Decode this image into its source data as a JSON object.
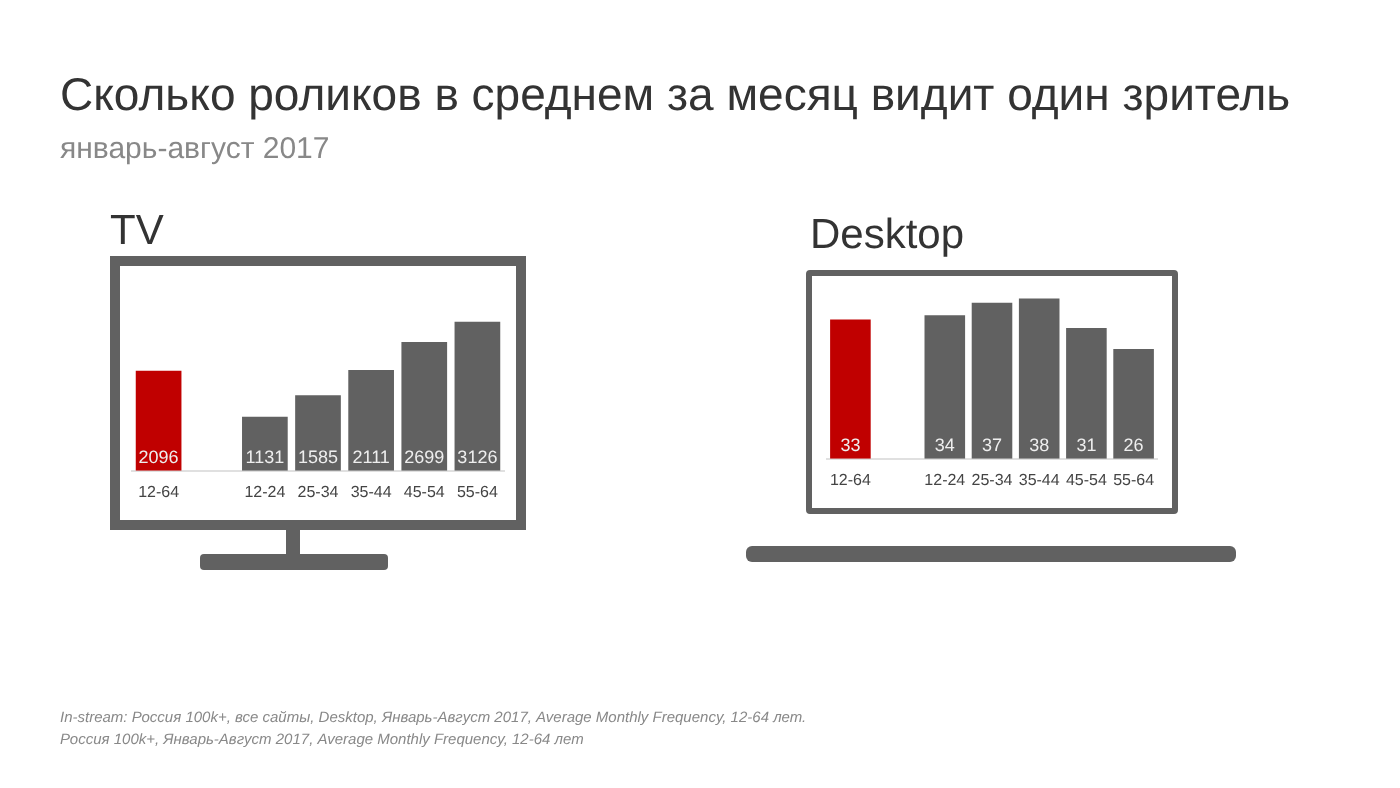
{
  "chart_data": [
    {
      "type": "other",
      "title": "Сколько роликов в среднем за месяц видит один зритель",
      "subtitle": "январь-август 2017",
      "annotations": [
        "In-stream: Россия 100k+, все сайты, Desktop, Январь-Август 2017, Average Monthly Frequency, 12-64 лет.",
        "Россия 100k+, Январь-Август 2017, Average Monthly Frequency, 12-64 лет"
      ]
    },
    {
      "type": "bar",
      "title": "TV",
      "categories": [
        "12-64",
        null,
        "12-24",
        "25-34",
        "35-44",
        "45-54",
        "55-64"
      ],
      "values": [
        2096,
        null,
        1131,
        1585,
        2111,
        2699,
        3126
      ],
      "colors": [
        "#c00000",
        null,
        "#616161",
        "#616161",
        "#616161",
        "#616161",
        "#616161"
      ],
      "data_labels": true,
      "grid": false,
      "legend": false
    },
    {
      "type": "bar",
      "title": "Desktop",
      "categories": [
        "12-64",
        null,
        "12-24",
        "25-34",
        "35-44",
        "45-54",
        "55-64"
      ],
      "values": [
        33,
        null,
        34,
        37,
        38,
        31,
        26
      ],
      "colors": [
        "#c00000",
        null,
        "#616161",
        "#616161",
        "#616161",
        "#616161",
        "#616161"
      ],
      "data_labels": true,
      "grid": false,
      "legend": false
    }
  ]
}
